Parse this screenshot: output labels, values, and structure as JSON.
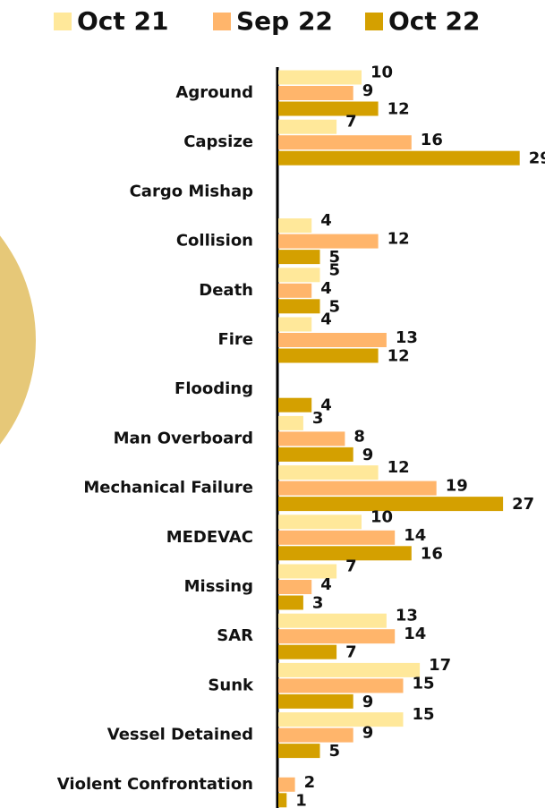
{
  "chart_data": {
    "type": "bar",
    "orientation": "horizontal",
    "categories": [
      "Aground",
      "Capsize",
      "Cargo Mishap",
      "Collision",
      "Death",
      "Fire",
      "Flooding",
      "Man Overboard",
      "Mechanical Failure",
      "MEDEVAC",
      "Missing",
      "SAR",
      "Sunk",
      "Vessel Detained",
      "Violent Confrontation"
    ],
    "series": [
      {
        "name": "Oct 21",
        "color": "#ffe89a",
        "values": [
          10,
          7,
          null,
          4,
          5,
          4,
          null,
          3,
          12,
          10,
          7,
          13,
          17,
          15,
          null
        ]
      },
      {
        "name": "Sep 22",
        "color": "#ffb56b",
        "values": [
          9,
          16,
          null,
          12,
          4,
          13,
          null,
          8,
          19,
          14,
          4,
          14,
          15,
          9,
          2
        ]
      },
      {
        "name": "Oct 22",
        "color": "#d4a000",
        "values": [
          12,
          29,
          null,
          5,
          5,
          12,
          4,
          9,
          27,
          16,
          3,
          7,
          9,
          5,
          1
        ]
      }
    ],
    "xlim": [
      0,
      30
    ],
    "legend": "top"
  }
}
